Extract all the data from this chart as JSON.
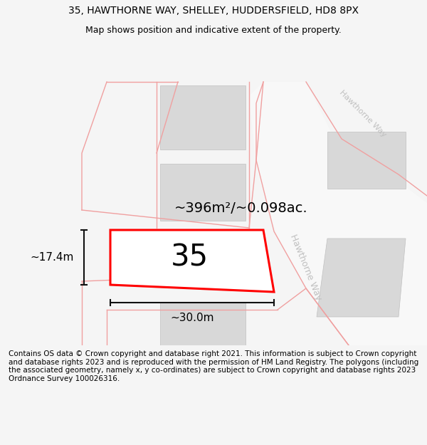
{
  "title_line1": "35, HAWTHORNE WAY, SHELLEY, HUDDERSFIELD, HD8 8PX",
  "title_line2": "Map shows position and indicative extent of the property.",
  "footer_text": "Contains OS data © Crown copyright and database right 2021. This information is subject to Crown copyright and database rights 2023 and is reproduced with the permission of HM Land Registry. The polygons (including the associated geometry, namely x, y co-ordinates) are subject to Crown copyright and database rights 2023 Ordnance Survey 100026316.",
  "area_label": "~396m²/~0.098ac.",
  "width_label": "~30.0m",
  "height_label": "~17.4m",
  "plot_number": "35",
  "road_label_main": "Hawthorne Way",
  "road_label_top": "Hawthorne Way",
  "bg_color": "#f5f5f5",
  "map_bg": "#ffffff",
  "plot_edge": "#ff0000",
  "road_line_color": "#f0a0a0",
  "building_fill": "#d8d8d8",
  "building_edge": "#c0c0c0",
  "road_fill": "#f8f8f8",
  "dim_line_color": "#111111",
  "title_fontsize": 10,
  "subtitle_fontsize": 9,
  "footer_fontsize": 7.5,
  "area_fontsize": 14,
  "number_fontsize": 30,
  "dim_fontsize": 11,
  "road_text_color": "#c0c0c0",
  "road_text_size": 9
}
